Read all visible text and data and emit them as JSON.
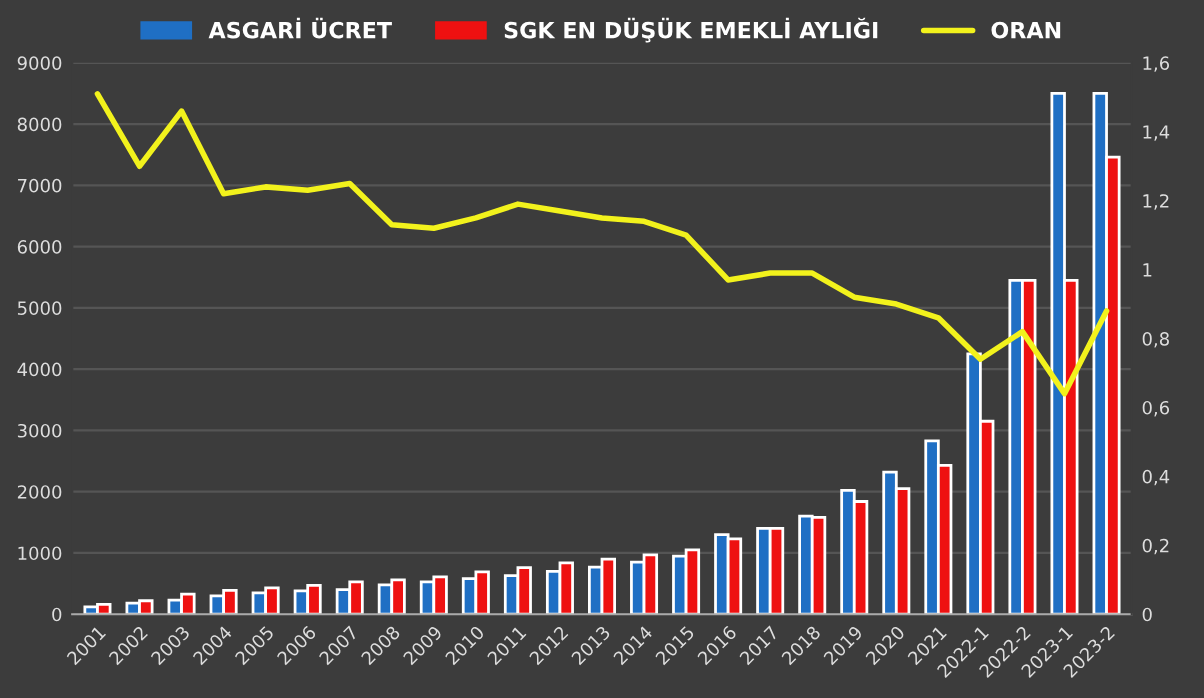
{
  "chart_data": {
    "type": "bar",
    "categories": [
      "2001",
      "2002",
      "2003",
      "2004",
      "2005",
      "2006",
      "2007",
      "2008",
      "2009",
      "2010",
      "2011",
      "2012",
      "2013",
      "2014",
      "2015",
      "2016",
      "2017",
      "2018",
      "2019",
      "2020",
      "2021",
      "2022-1",
      "2022-2",
      "2023-1",
      "2023-2"
    ],
    "series": [
      {
        "name": "ASGARİ ÜCRET",
        "color": "#1f6fc4",
        "values": [
          120,
          180,
          230,
          300,
          350,
          380,
          400,
          480,
          530,
          580,
          630,
          700,
          770,
          850,
          950,
          1300,
          1400,
          1600,
          2020,
          2320,
          2830,
          4250,
          5450,
          8500,
          8500
        ]
      },
      {
        "name": "SGK EN DÜŞÜK EMEKLİ AYLIĞI",
        "color": "#ee1111",
        "values": [
          160,
          220,
          330,
          390,
          430,
          470,
          530,
          560,
          610,
          690,
          760,
          840,
          900,
          970,
          1050,
          1230,
          1400,
          1580,
          1840,
          2050,
          2430,
          3150,
          5450,
          5450,
          7460
        ]
      },
      {
        "name": "ORAN",
        "type": "line",
        "axis": "y2",
        "color": "#f2f21c",
        "values": [
          1.51,
          1.3,
          1.46,
          1.22,
          1.24,
          1.23,
          1.25,
          1.13,
          1.12,
          1.15,
          1.19,
          1.17,
          1.15,
          1.14,
          1.1,
          0.97,
          0.99,
          0.99,
          0.92,
          0.9,
          0.86,
          0.74,
          0.82,
          0.64,
          0.88
        ]
      }
    ],
    "ylim": [
      0,
      9000
    ],
    "yticks": [
      0,
      1000,
      2000,
      3000,
      4000,
      5000,
      6000,
      7000,
      8000,
      9000
    ],
    "y2lim": [
      0,
      1.6
    ],
    "y2ticks": [
      0,
      {
        "value": 0.2,
        "label": "0,2"
      },
      {
        "value": 0.4,
        "label": "0,4"
      },
      {
        "value": 0.6,
        "label": "0,6"
      },
      {
        "value": 0.8,
        "label": "0,8"
      },
      1,
      {
        "value": 1.2,
        "label": "1,2"
      },
      {
        "value": 1.4,
        "label": "1,4"
      },
      {
        "value": 1.6,
        "label": "1,6"
      }
    ],
    "grid": "y",
    "legend": "top"
  }
}
